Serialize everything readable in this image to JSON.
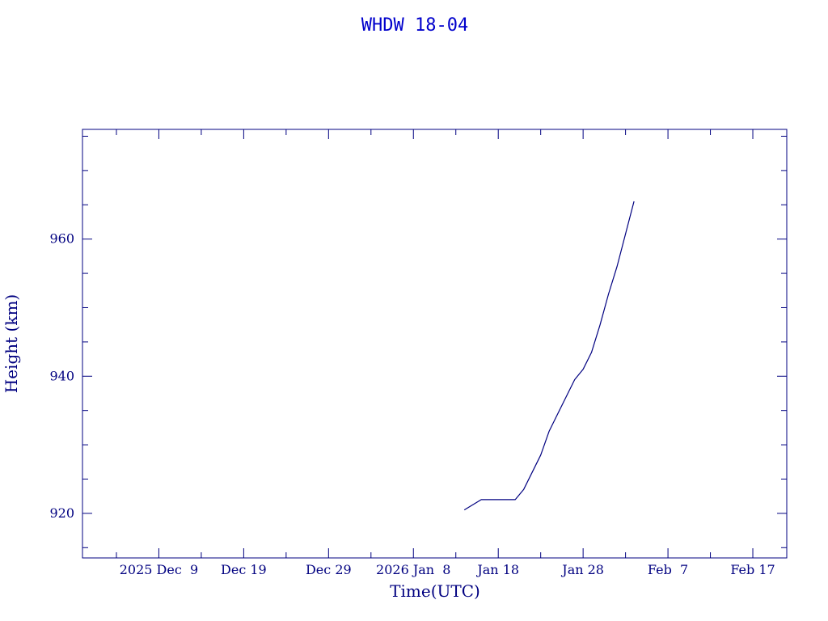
{
  "chart_data": {
    "type": "line",
    "title": "WHDW 18-04",
    "xlabel": "Time(UTC)",
    "ylabel": "Height (km)",
    "colors": {
      "text_title": "#0000cc",
      "axis": "#000080",
      "line": "#000080",
      "background": "#ffffff"
    },
    "x_axis": {
      "kind": "date",
      "range": [
        "2025-11-30",
        "2026-02-21"
      ],
      "major_ticks": [
        {
          "date": "2025-12-09",
          "label": "2025 Dec  9"
        },
        {
          "date": "2025-12-19",
          "label": "Dec 19"
        },
        {
          "date": "2025-12-29",
          "label": "Dec 29"
        },
        {
          "date": "2026-01-08",
          "label": "2026 Jan  8"
        },
        {
          "date": "2026-01-18",
          "label": "Jan 18"
        },
        {
          "date": "2026-01-28",
          "label": "Jan 28"
        },
        {
          "date": "2026-02-07",
          "label": "Feb  7"
        },
        {
          "date": "2026-02-17",
          "label": "Feb 17"
        }
      ],
      "minor_tick_every_days": 5
    },
    "y_axis": {
      "range": [
        913.5,
        976
      ],
      "major_ticks": [
        920,
        940,
        960
      ],
      "minor_tick_every": 5
    },
    "grid": false,
    "legend": "none",
    "series": [
      {
        "points": [
          {
            "x": "2026-01-14",
            "y": 920.5
          },
          {
            "x": "2026-01-16",
            "y": 922.0
          },
          {
            "x": "2026-01-20",
            "y": 922.0
          },
          {
            "x": "2026-01-21",
            "y": 923.5
          },
          {
            "x": "2026-01-23",
            "y": 928.5
          },
          {
            "x": "2026-01-24",
            "y": 932.0
          },
          {
            "x": "2026-01-25",
            "y": 934.5
          },
          {
            "x": "2026-01-27",
            "y": 939.5
          },
          {
            "x": "2026-01-28",
            "y": 941.0
          },
          {
            "x": "2026-01-29",
            "y": 943.5
          },
          {
            "x": "2026-01-30",
            "y": 947.5
          },
          {
            "x": "2026-01-31",
            "y": 952.0
          },
          {
            "x": "2026-02-01",
            "y": 956.0
          },
          {
            "x": "2026-02-03",
            "y": 965.5
          }
        ]
      }
    ]
  }
}
